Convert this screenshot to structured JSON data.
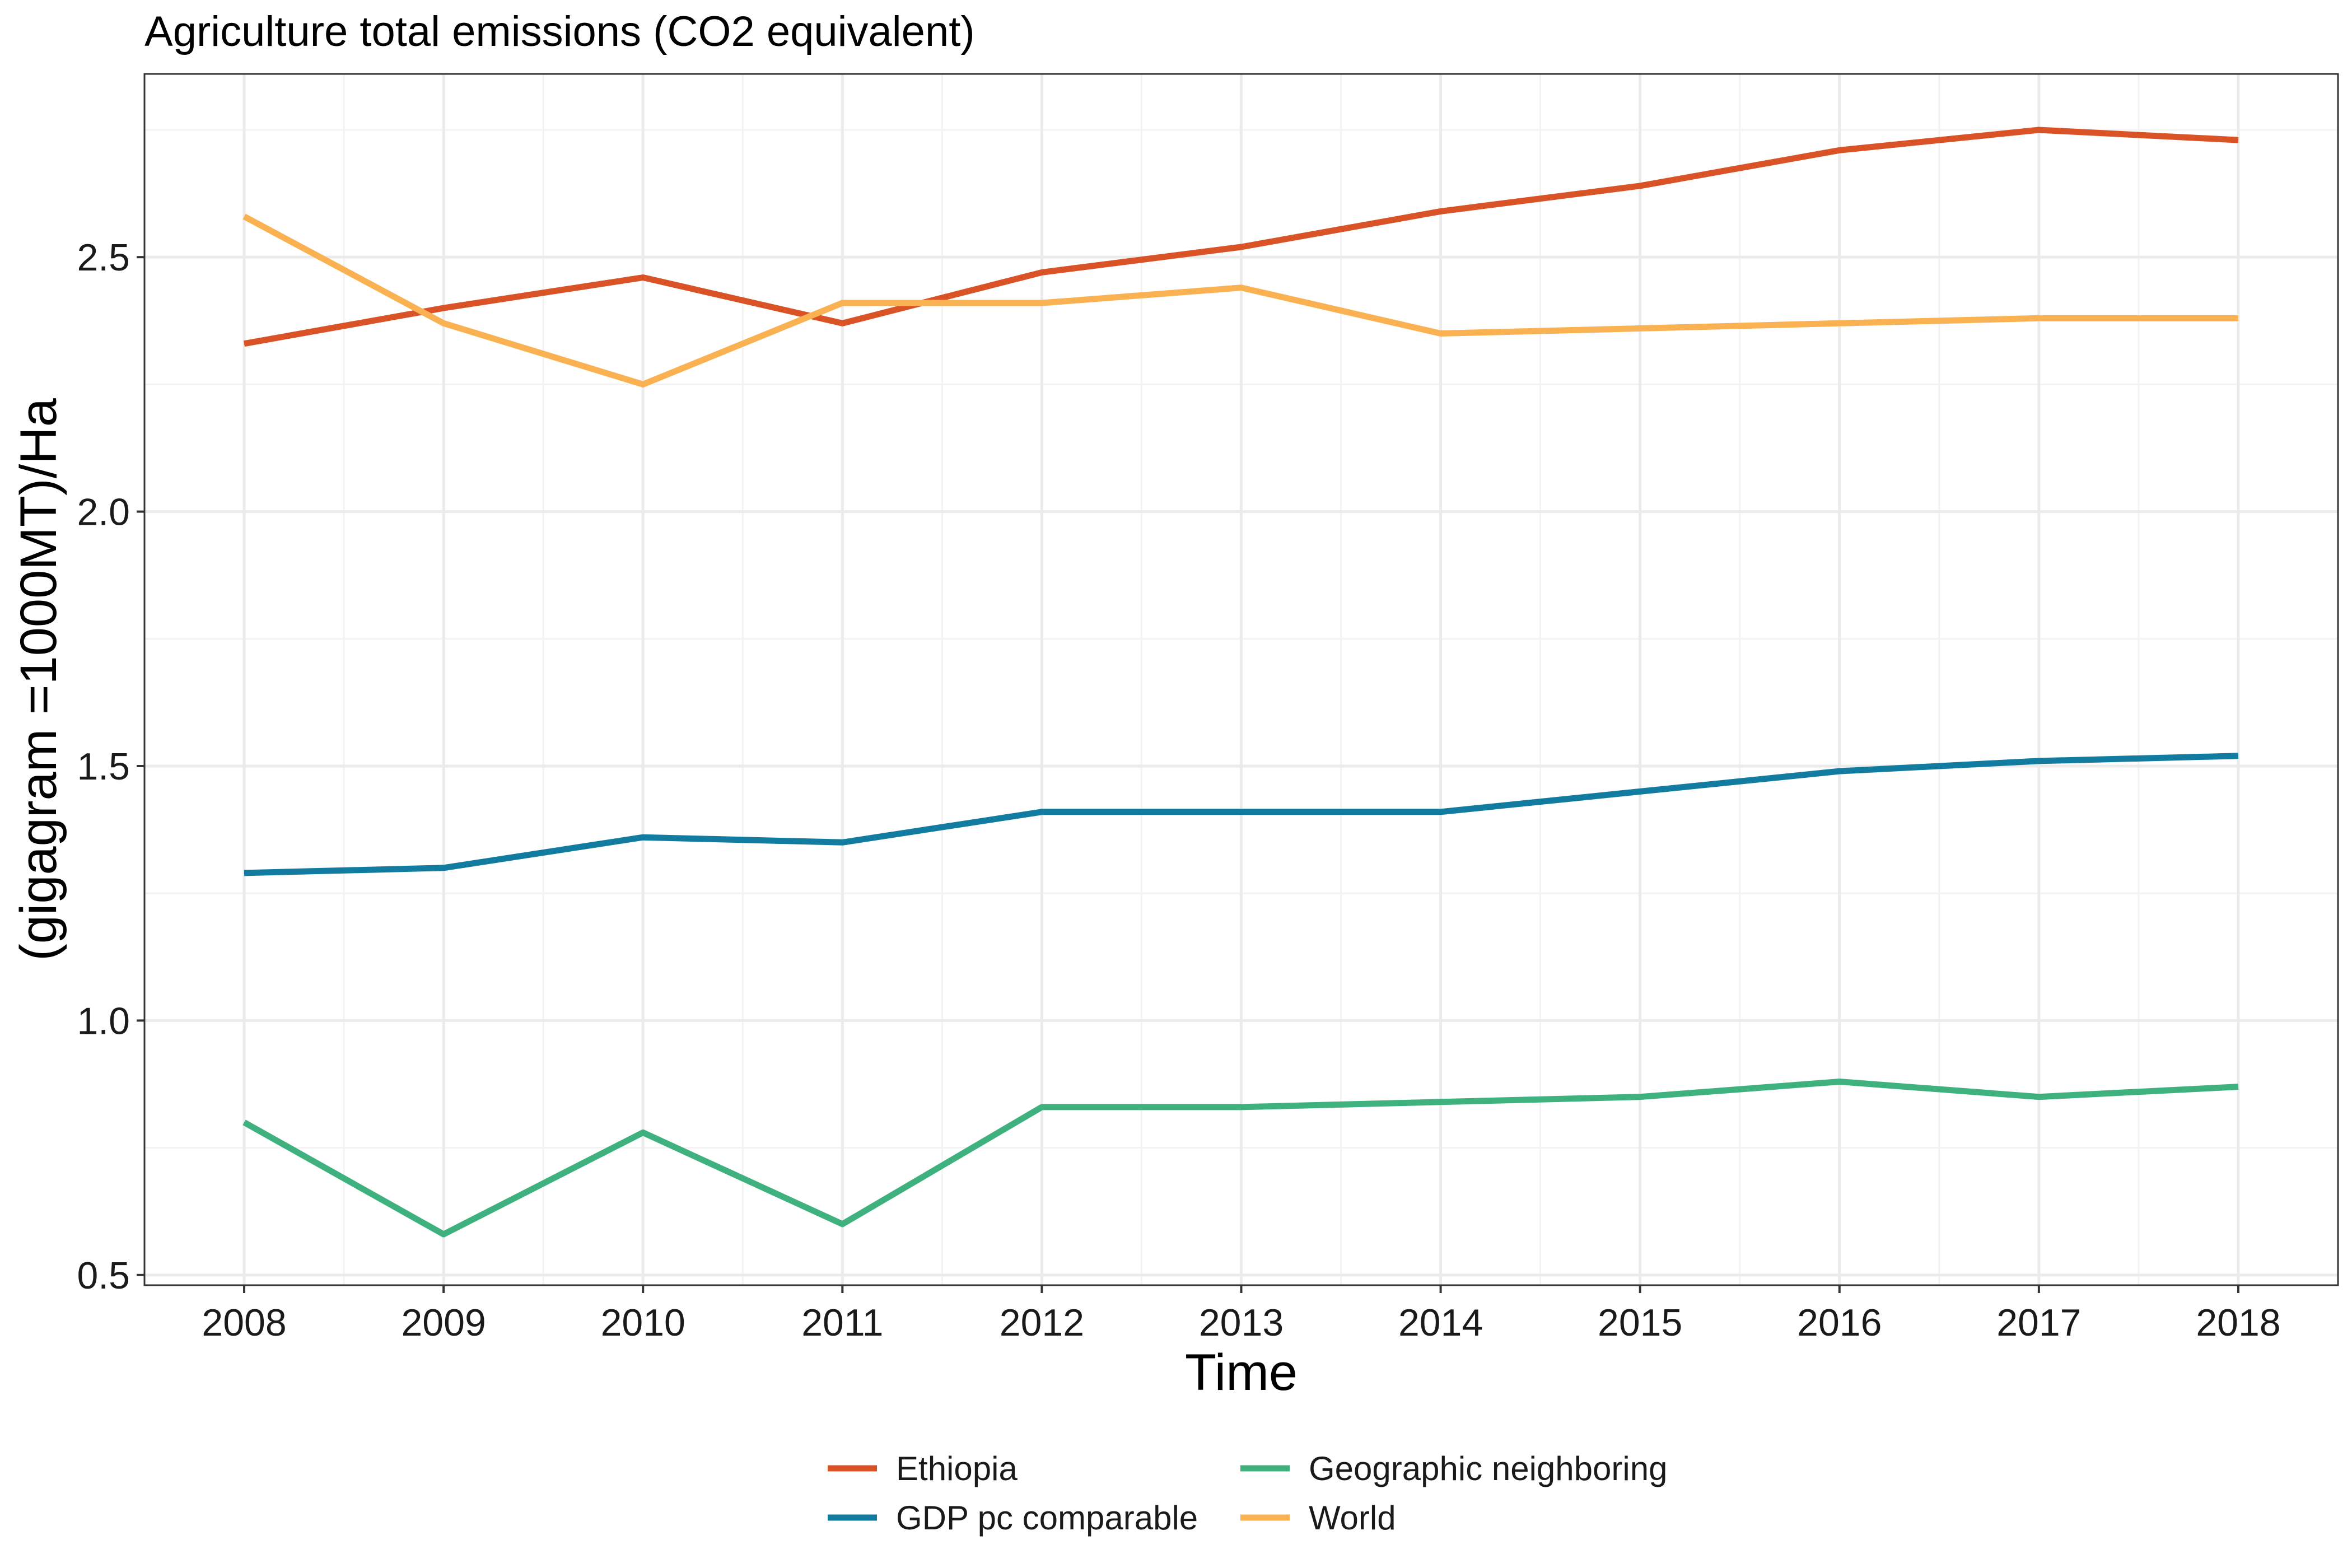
{
  "chart_data": {
    "type": "line",
    "title": "Agriculture total emissions (CO2 equivalent)",
    "xlabel": "Time",
    "ylabel": "(gigagram =1000MT)/Ha",
    "x": [
      2008,
      2009,
      2010,
      2011,
      2012,
      2013,
      2014,
      2015,
      2016,
      2017,
      2018
    ],
    "xlim": [
      2007.5,
      2018.5
    ],
    "ylim": [
      0.48,
      2.86
    ],
    "yticks": [
      0.5,
      1.0,
      1.5,
      2.0,
      2.5
    ],
    "ytick_labels": [
      "0.5",
      "1.0",
      "1.5",
      "2.0",
      "2.5"
    ],
    "xtick_labels": [
      "2008",
      "2009",
      "2010",
      "2011",
      "2012",
      "2013",
      "2014",
      "2015",
      "2016",
      "2017",
      "2018"
    ],
    "grid": true,
    "legend_position": "bottom",
    "series": [
      {
        "name": "Ethiopia",
        "color": "#D95327",
        "values": [
          2.33,
          2.4,
          2.46,
          2.37,
          2.47,
          2.52,
          2.59,
          2.64,
          2.71,
          2.75,
          2.73
        ]
      },
      {
        "name": "GDP pc comparable",
        "color": "#127CA0",
        "values": [
          1.29,
          1.3,
          1.36,
          1.35,
          1.41,
          1.41,
          1.41,
          1.45,
          1.49,
          1.51,
          1.52
        ]
      },
      {
        "name": "Geographic neighboring",
        "color": "#3FB17F",
        "values": [
          0.8,
          0.58,
          0.78,
          0.6,
          0.83,
          0.83,
          0.84,
          0.85,
          0.88,
          0.85,
          0.87
        ]
      },
      {
        "name": "World",
        "color": "#F9B151",
        "values": [
          2.58,
          2.37,
          2.25,
          2.41,
          2.41,
          2.44,
          2.35,
          2.36,
          2.37,
          2.38,
          2.38
        ]
      }
    ],
    "legend_order": [
      0,
      1,
      2,
      3
    ]
  }
}
